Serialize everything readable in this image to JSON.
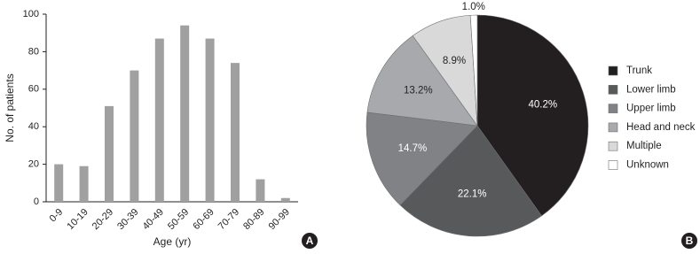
{
  "chart_data": [
    {
      "type": "bar",
      "panel_label": "A",
      "xlabel": "Age (yr)",
      "ylabel": "No. of patients",
      "categories": [
        "0-9",
        "10-19",
        "20-29",
        "30-39",
        "40-49",
        "50-59",
        "60-69",
        "70-79",
        "80-89",
        "90-99"
      ],
      "values": [
        20,
        19,
        51,
        70,
        87,
        94,
        87,
        74,
        12,
        2
      ],
      "color": "#a0a0a0",
      "ylim": [
        0,
        100
      ],
      "yticks": [
        0,
        20,
        40,
        60,
        80,
        100
      ]
    },
    {
      "type": "pie",
      "panel_label": "B",
      "categories": [
        "Trunk",
        "Lower limb",
        "Upper limb",
        "Head and neck",
        "Multiple",
        "Unknown"
      ],
      "values": [
        40.2,
        22.1,
        14.7,
        13.2,
        8.9,
        1.0
      ],
      "value_labels": [
        "40.2%",
        "22.1%",
        "14.7%",
        "13.2%",
        "8.9%",
        "1.0%"
      ],
      "colors": [
        "#231f20",
        "#58595b",
        "#808285",
        "#a7a9ac",
        "#d9d9d9",
        "#ffffff"
      ]
    }
  ]
}
